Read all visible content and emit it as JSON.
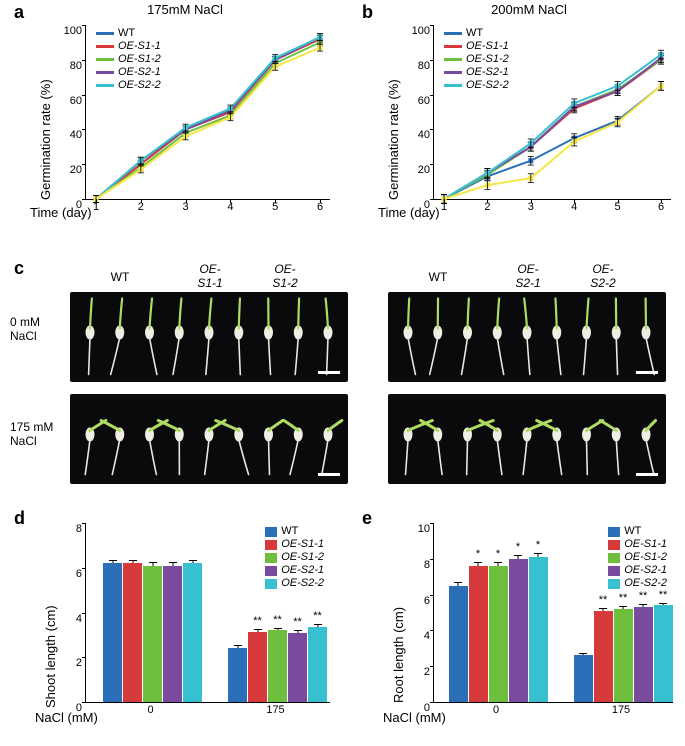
{
  "colors": {
    "WT": "#2b6fb8",
    "OE-S1-1": "#d63a3a",
    "OE-S1-2": "#6fbf3f",
    "OE-S2-1": "#7a4a9e",
    "OE-S2-2": "#37c0cf",
    "background": "#ffffff",
    "axis": "#000000",
    "yellow_line": "#f7e745"
  },
  "panel_a": {
    "label": "a",
    "title": "175mM NaCl",
    "ylabel": "Germination rate (%)",
    "xlabel": "Time (day)",
    "x_ticks": [
      1,
      2,
      3,
      4,
      5,
      6
    ],
    "y_ticks": [
      0,
      20,
      40,
      60,
      80,
      100
    ],
    "ylim": [
      0,
      100
    ],
    "series": [
      {
        "name": "WT",
        "color": "#2b6fb8",
        "values": [
          0,
          20,
          40,
          50,
          80,
          92
        ]
      },
      {
        "name": "OE-S1-1",
        "color": "#d63a3a",
        "values": [
          0,
          20,
          40,
          50,
          80,
          92
        ],
        "italic": true
      },
      {
        "name": "OE-S1-2",
        "color": "#6fbf3f",
        "values": [
          0,
          18,
          38,
          48,
          78,
          90
        ],
        "italic": true
      },
      {
        "name": "OE-S2-1",
        "color": "#7a4a9e",
        "values": [
          0,
          22,
          40,
          51,
          80,
          93
        ],
        "italic": true
      },
      {
        "name": "OE-S2-2",
        "color": "#37c0cf",
        "values": [
          0,
          22,
          41,
          52,
          81,
          93
        ],
        "italic": true
      },
      {
        "name": "yellow",
        "color": "#f7e745",
        "values": [
          0,
          17,
          36,
          47,
          76,
          87
        ],
        "hidden_legend": true
      }
    ],
    "error": 2
  },
  "panel_b": {
    "label": "b",
    "title": "200mM NaCl",
    "ylabel": "Germination rate (%)",
    "xlabel": "Time (day)",
    "x_ticks": [
      1,
      2,
      3,
      4,
      5,
      6
    ],
    "y_ticks": [
      0,
      20,
      40,
      60,
      80,
      100
    ],
    "ylim": [
      0,
      100
    ],
    "series": [
      {
        "name": "WT",
        "color": "#2b6fb8",
        "values": [
          0,
          13,
          22,
          35,
          45,
          65
        ]
      },
      {
        "name": "OE-S1-1",
        "color": "#d63a3a",
        "values": [
          0,
          14,
          30,
          52,
          62,
          80
        ],
        "italic": true
      },
      {
        "name": "OE-S1-2",
        "color": "#6fbf3f",
        "values": [
          0,
          14,
          30,
          53,
          63,
          80
        ],
        "italic": true
      },
      {
        "name": "OE-S2-1",
        "color": "#7a4a9e",
        "values": [
          0,
          15,
          30,
          53,
          62,
          81
        ],
        "italic": true
      },
      {
        "name": "OE-S2-2",
        "color": "#37c0cf",
        "values": [
          0,
          15,
          32,
          55,
          65,
          83
        ],
        "italic": true
      },
      {
        "name": "yellow",
        "color": "#f7e745",
        "values": [
          0,
          8,
          12,
          33,
          44,
          65
        ],
        "hidden_legend": true
      }
    ],
    "error": 2.5
  },
  "panel_c": {
    "label": "c",
    "columns_left": [
      "WT",
      "OE-\nS1-1",
      "OE-\nS1-2"
    ],
    "columns_right": [
      "WT",
      "OE-\nS2-1",
      "OE-\nS2-2"
    ],
    "rows": [
      "0 mM\nNaCl",
      "175 mM\nNaCl"
    ]
  },
  "panel_d": {
    "label": "d",
    "ylabel": "Shoot length (cm)",
    "xlabel": "NaCl (mM)",
    "x_groups": [
      "0",
      "175"
    ],
    "y_ticks": [
      0,
      2,
      4,
      6,
      8
    ],
    "ylim": [
      0,
      8
    ],
    "series": [
      {
        "name": "WT",
        "color": "#2b6fb8"
      },
      {
        "name": "OE-S1-1",
        "color": "#d63a3a",
        "italic": true
      },
      {
        "name": "OE-S1-2",
        "color": "#6fbf3f",
        "italic": true
      },
      {
        "name": "OE-S2-1",
        "color": "#7a4a9e",
        "italic": true
      },
      {
        "name": "OE-S2-2",
        "color": "#37c0cf",
        "italic": true
      }
    ],
    "values": {
      "0": [
        6.2,
        6.2,
        6.1,
        6.1,
        6.2
      ],
      "175": [
        2.4,
        3.15,
        3.2,
        3.1,
        3.35
      ]
    },
    "errors": {
      "0": [
        0.15,
        0.15,
        0.15,
        0.15,
        0.15
      ],
      "175": [
        0.15,
        0.12,
        0.12,
        0.12,
        0.12
      ]
    },
    "sig": {
      "0": [
        "",
        "",
        "",
        "",
        ""
      ],
      "175": [
        "",
        "**",
        "**",
        "**",
        "**"
      ]
    }
  },
  "panel_e": {
    "label": "e",
    "ylabel": "Root length (cm)",
    "xlabel": "NaCl (mM)",
    "x_groups": [
      "0",
      "175"
    ],
    "y_ticks": [
      0,
      2,
      4,
      6,
      8,
      10
    ],
    "ylim": [
      0,
      10
    ],
    "series": [
      {
        "name": "WT",
        "color": "#2b6fb8"
      },
      {
        "name": "OE-S1-1",
        "color": "#d63a3a",
        "italic": true
      },
      {
        "name": "OE-S1-2",
        "color": "#6fbf3f",
        "italic": true
      },
      {
        "name": "OE-S2-1",
        "color": "#7a4a9e",
        "italic": true
      },
      {
        "name": "OE-S2-2",
        "color": "#37c0cf",
        "italic": true
      }
    ],
    "values": {
      "0": [
        6.5,
        7.6,
        7.6,
        8.0,
        8.1
      ],
      "175": [
        2.6,
        5.1,
        5.2,
        5.3,
        5.4
      ]
    },
    "errors": {
      "0": [
        0.2,
        0.2,
        0.2,
        0.2,
        0.2
      ],
      "175": [
        0.15,
        0.15,
        0.15,
        0.15,
        0.15
      ]
    },
    "sig": {
      "0": [
        "",
        "*",
        "*",
        "*",
        "*"
      ],
      "175": [
        "",
        "**",
        "**",
        "**",
        "**"
      ]
    }
  },
  "layout": {
    "line_width": 2,
    "marker_size": 4,
    "font_tick": 11,
    "font_label": 13,
    "font_panel": 18
  }
}
